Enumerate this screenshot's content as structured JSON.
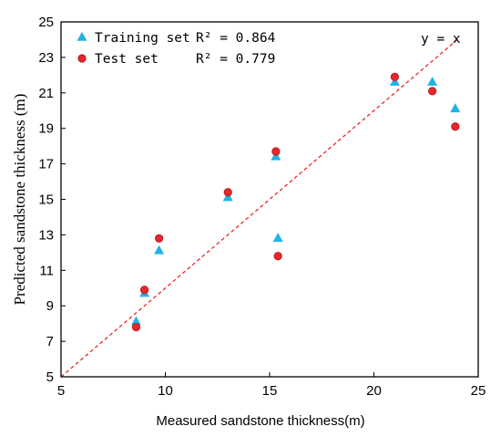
{
  "chart_data": {
    "type": "scatter",
    "title": "",
    "xlabel": "Measured sandstone thickness(m)",
    "ylabel": "Predicted sandstone thickness (m)",
    "xlim": [
      5,
      25
    ],
    "ylim": [
      5,
      25
    ],
    "xticks": [
      5,
      10,
      15,
      20,
      25
    ],
    "yticks": [
      5,
      7,
      9,
      11,
      13,
      15,
      17,
      19,
      21,
      23,
      25
    ],
    "grid": false,
    "legend_position": "top-left",
    "reference_line": {
      "label": "y = x",
      "color": "#e8262b",
      "style": "dashed"
    },
    "series": [
      {
        "name": "Training set",
        "marker": "triangle",
        "color": "#1fb3e8",
        "r2_label": "R² = 0.864",
        "x": [
          8.6,
          9.0,
          9.7,
          13.0,
          15.3,
          15.4,
          21.0,
          22.8,
          23.9
        ],
        "y": [
          8.1,
          9.7,
          12.1,
          15.1,
          17.4,
          12.8,
          21.6,
          21.6,
          20.1
        ]
      },
      {
        "name": "Test set",
        "marker": "circle",
        "color": "#e8262b",
        "r2_label": "R² = 0.779",
        "x": [
          8.6,
          9.0,
          9.7,
          13.0,
          15.3,
          15.4,
          21.0,
          22.8,
          23.9
        ],
        "y": [
          7.8,
          9.9,
          12.8,
          15.4,
          17.7,
          11.8,
          21.9,
          21.1,
          19.1
        ]
      }
    ]
  }
}
